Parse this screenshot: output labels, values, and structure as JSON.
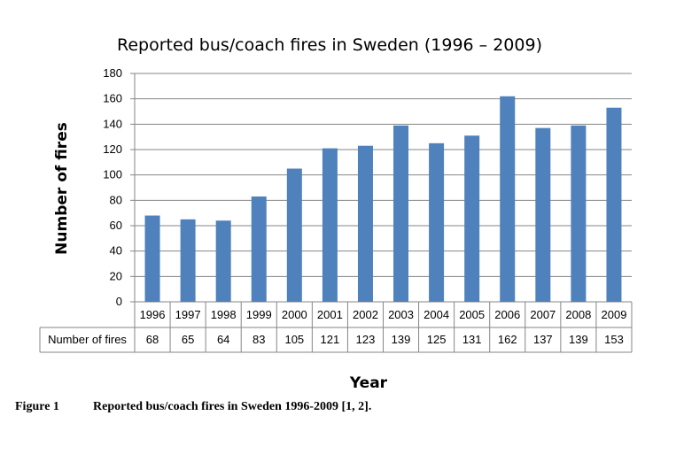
{
  "chart_data": {
    "type": "bar",
    "title": "Reported bus/coach fires in Sweden (1996 – 2009)",
    "xlabel": "Year",
    "ylabel": "Number of fires",
    "ylim": [
      0,
      180
    ],
    "yticks": [
      0,
      20,
      40,
      60,
      80,
      100,
      120,
      140,
      160,
      180
    ],
    "grid": true,
    "bar_color": "#4F81BD",
    "categories": [
      "1996",
      "1997",
      "1998",
      "1999",
      "2000",
      "2001",
      "2002",
      "2003",
      "2004",
      "2005",
      "2006",
      "2007",
      "2008",
      "2009"
    ],
    "series": [
      {
        "name": "Number of fires",
        "values": [
          68,
          65,
          64,
          83,
          105,
          121,
          123,
          139,
          125,
          131,
          162,
          137,
          139,
          153
        ]
      }
    ],
    "data_table": true
  },
  "caption": {
    "label": "Figure 1",
    "text": "Reported bus/coach fires in Sweden 1996-2009 [1, 2]."
  }
}
